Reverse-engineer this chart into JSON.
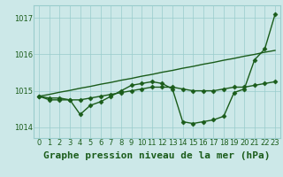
{
  "title": "Graphe pression niveau de la mer (hPa)",
  "bg_color": "#cce8e8",
  "grid_color": "#99cccc",
  "line_color": "#1a5c1a",
  "text_color": "#1a5c1a",
  "xlim": [
    -0.5,
    23.5
  ],
  "ylim": [
    1013.7,
    1017.35
  ],
  "xticks": [
    0,
    1,
    2,
    3,
    4,
    5,
    6,
    7,
    8,
    9,
    10,
    11,
    12,
    13,
    14,
    15,
    16,
    17,
    18,
    19,
    20,
    21,
    22,
    23
  ],
  "yticks": [
    1014,
    1015,
    1016,
    1017
  ],
  "series1": [
    1014.85,
    1014.75,
    1014.75,
    1014.75,
    1014.35,
    1014.6,
    1014.7,
    1014.85,
    1015.0,
    1015.15,
    1015.2,
    1015.25,
    1015.2,
    1015.05,
    1014.15,
    1014.1,
    1014.15,
    1014.2,
    1014.3,
    1014.95,
    1015.05,
    1015.85,
    1016.15,
    1017.1
  ],
  "series2": [
    1014.85,
    1014.8,
    1014.8,
    1014.75,
    1014.75,
    1014.8,
    1014.85,
    1014.9,
    1014.95,
    1015.0,
    1015.05,
    1015.1,
    1015.1,
    1015.1,
    1015.05,
    1015.0,
    1015.0,
    1015.0,
    1015.05,
    1015.1,
    1015.1,
    1015.15,
    1015.2,
    1015.25
  ],
  "series3": [
    1014.85,
    1014.9,
    1014.96,
    1015.01,
    1015.07,
    1015.12,
    1015.18,
    1015.23,
    1015.29,
    1015.34,
    1015.4,
    1015.45,
    1015.51,
    1015.56,
    1015.62,
    1015.67,
    1015.73,
    1015.78,
    1015.84,
    1015.89,
    1015.95,
    1016.0,
    1016.06,
    1016.11
  ],
  "marker": "D",
  "markersize": 2.5,
  "linewidth": 1.0,
  "title_fontsize": 8,
  "tick_fontsize": 6
}
